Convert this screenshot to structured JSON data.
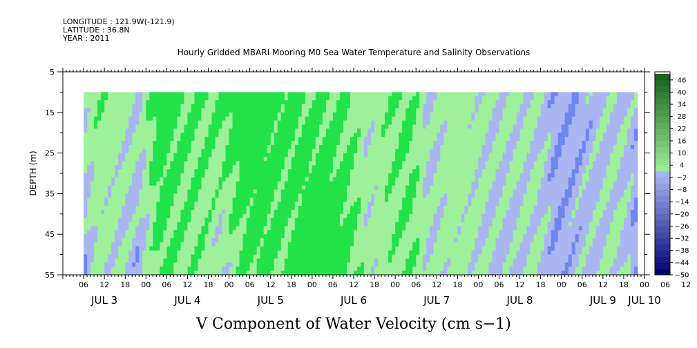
{
  "header": {
    "longitude": "LONGITUDE : 121.9W(-121.9)",
    "latitude": "LATITUDE : 36.8N",
    "year": "YEAR : 2011"
  },
  "chart_data": {
    "type": "heatmap",
    "title": "Hourly Gridded MBARI Mooring M0 Sea Water Temperature and Salinity Observations",
    "xlabel": "V Component of Water Velocity (cm s−1)",
    "ylabel": "DEPTH (m)",
    "x_hour_ticks": [
      "06",
      "12",
      "18",
      "00",
      "06",
      "12",
      "18",
      "00",
      "06",
      "12",
      "18",
      "00",
      "06",
      "12",
      "18",
      "00",
      "06",
      "12",
      "18",
      "00",
      "06",
      "12",
      "18",
      "00",
      "06",
      "12",
      "18",
      "00",
      "06",
      "12",
      "18",
      "00"
    ],
    "x_day_labels": [
      "JUL  3",
      "JUL  4",
      "JUL  5",
      "JUL  6",
      "JUL  7",
      "JUL  8",
      "JUL  9",
      "JUL 10"
    ],
    "x_range_hours": [
      0,
      168
    ],
    "data_time_range_hours": [
      6,
      166
    ],
    "y_ticks": [
      "5",
      "15",
      "25",
      "35",
      "45",
      "55"
    ],
    "ylim": [
      5,
      55
    ],
    "data_depth_range": [
      10,
      55
    ],
    "colorbar_labels": [
      "46",
      "40",
      "34",
      "28",
      "22",
      "16",
      "10",
      "4",
      "−2",
      "−8",
      "−14",
      "−20",
      "−26",
      "−32",
      "−38",
      "−44",
      "−50"
    ],
    "colorbar_range": [
      -50,
      50
    ],
    "colorbar_step": 3,
    "colors": {
      "strong_positive": "#1c7a2e",
      "positive": "#22e24a",
      "light_positive": "#9ef09a",
      "light_negative": "#a9b6f2",
      "negative": "#6f86f0",
      "strong_negative": "#00006a"
    },
    "time_profile": {
      "hours": [
        6,
        10,
        16,
        22,
        28,
        34,
        40,
        46,
        52,
        58,
        64,
        70,
        76,
        82,
        88,
        94,
        100,
        106,
        112,
        118,
        124,
        130,
        136,
        142,
        148,
        154,
        160,
        166
      ],
      "surface_velocity": [
        4,
        8,
        6,
        2,
        16,
        12,
        10,
        12,
        18,
        14,
        14,
        12,
        11,
        10,
        3,
        8,
        12,
        0,
        6,
        5,
        2,
        4,
        2,
        -4,
        -4,
        -2,
        0,
        -2
      ],
      "bottom_velocity": [
        -6,
        4,
        2,
        -4,
        12,
        8,
        8,
        0,
        10,
        14,
        10,
        16,
        18,
        14,
        4,
        6,
        10,
        2,
        5,
        4,
        0,
        -2,
        3,
        -4,
        -2,
        0,
        4,
        -6
      ]
    }
  }
}
